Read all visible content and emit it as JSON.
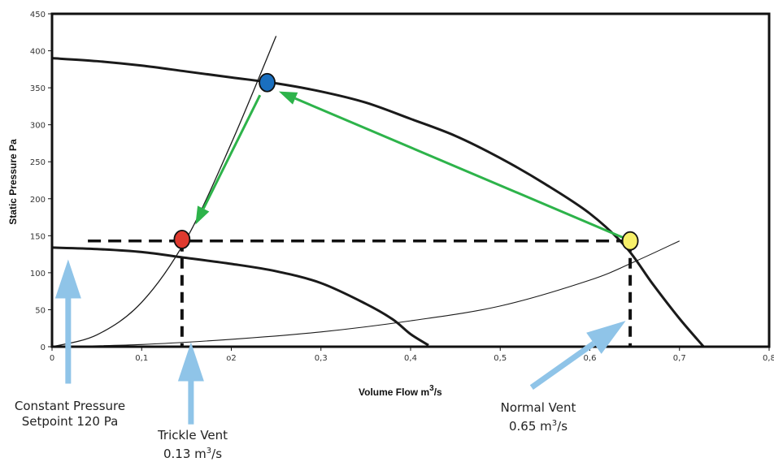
{
  "chart_data": {
    "type": "line",
    "title": "",
    "xlabel": "Volume Flow m",
    "xlabel_sup": "3",
    "xlabel_tail": "/s",
    "ylabel": "Static Pressure Pa",
    "xlim": [
      0,
      0.8
    ],
    "ylim": [
      0,
      450
    ],
    "x_ticks": [
      "0",
      "0,1",
      "o2",
      "0,3",
      "0,4",
      "0,5",
      "0,6",
      "0,7",
      "0,8"
    ],
    "x_tick_values": [
      0,
      0.1,
      0.2,
      0.3,
      0.4,
      0.5,
      0.6,
      0.7,
      0.8
    ],
    "y_ticks": [
      "0",
      "50",
      "100",
      "150",
      "200",
      "250",
      "300",
      "350",
      "400",
      "450"
    ],
    "y_tick_values": [
      0,
      50,
      100,
      150,
      200,
      250,
      300,
      350,
      400,
      450
    ],
    "grid": false,
    "series": [
      {
        "color": "#1a1a1a",
        "x": [
          0,
          0.05,
          0.1,
          0.15,
          0.2,
          0.25,
          0.3,
          0.35,
          0.4,
          0.45,
          0.5,
          0.55,
          0.6,
          0.64,
          0.67,
          0.7,
          0.727
        ],
        "y": [
          390,
          386,
          380,
          372,
          364,
          356,
          345,
          330,
          308,
          285,
          255,
          220,
          180,
          135,
          85,
          38,
          0
        ]
      },
      {
        "color": "#1a1a1a",
        "x": [
          0,
          0.05,
          0.1,
          0.15,
          0.2,
          0.25,
          0.3,
          0.35,
          0.38,
          0.4,
          0.42
        ],
        "y": [
          134,
          132,
          128,
          120,
          112,
          102,
          86,
          58,
          37,
          17,
          2
        ]
      },
      {
        "color": "#1a1a1a",
        "x": [
          0,
          0.05,
          0.1,
          0.15,
          0.2,
          0.25
        ],
        "y": [
          0,
          16,
          60,
          146,
          275,
          420
        ]
      },
      {
        "color": "#1a1a1a",
        "x": [
          0,
          0.1,
          0.2,
          0.3,
          0.4,
          0.5,
          0.6,
          0.65,
          0.7
        ],
        "y": [
          0,
          3,
          10,
          20,
          35,
          55,
          90,
          115,
          143
        ]
      }
    ],
    "points": [
      {
        "x": 0.145,
        "y": 145,
        "color": "#e03a2f"
      },
      {
        "x": 0.24,
        "y": 357,
        "color": "#1a6fbf"
      },
      {
        "x": 0.645,
        "y": 143,
        "color": "#f7f06a"
      }
    ],
    "arrows_green": [
      {
        "from": [
          0.232,
          340
        ],
        "to": [
          0.16,
          165
        ]
      },
      {
        "from": [
          0.638,
          147
        ],
        "to": [
          0.253,
          345
        ]
      }
    ],
    "dashed": {
      "y": 143,
      "x_start": 0.04,
      "x_end": 0.645,
      "drops": [
        0.145,
        0.645
      ]
    },
    "blue_arrows": [
      {
        "from": [
          0.018,
          -50
        ],
        "to": [
          0.018,
          118
        ]
      },
      {
        "from": [
          0.155,
          -105
        ],
        "to": [
          0.155,
          6
        ]
      },
      {
        "from": [
          0.535,
          -55
        ],
        "to": [
          0.64,
          35
        ]
      }
    ],
    "accent_colors": {
      "green_arrow": "#2db34a",
      "blue_arrow": "#8fc4e8"
    }
  },
  "annotations": {
    "constant": {
      "line1": "Constant Pressure",
      "line2": "Setpoint 120 Pa"
    },
    "trickle": {
      "line1": "Trickle Vent",
      "line2_pre": "0.13 m",
      "line2_sup": "3",
      "line2_post": "/s"
    },
    "normal": {
      "line1": "Normal Vent",
      "line2_pre": "0.65 m",
      "line2_sup": "3",
      "line2_post": "/s"
    }
  }
}
